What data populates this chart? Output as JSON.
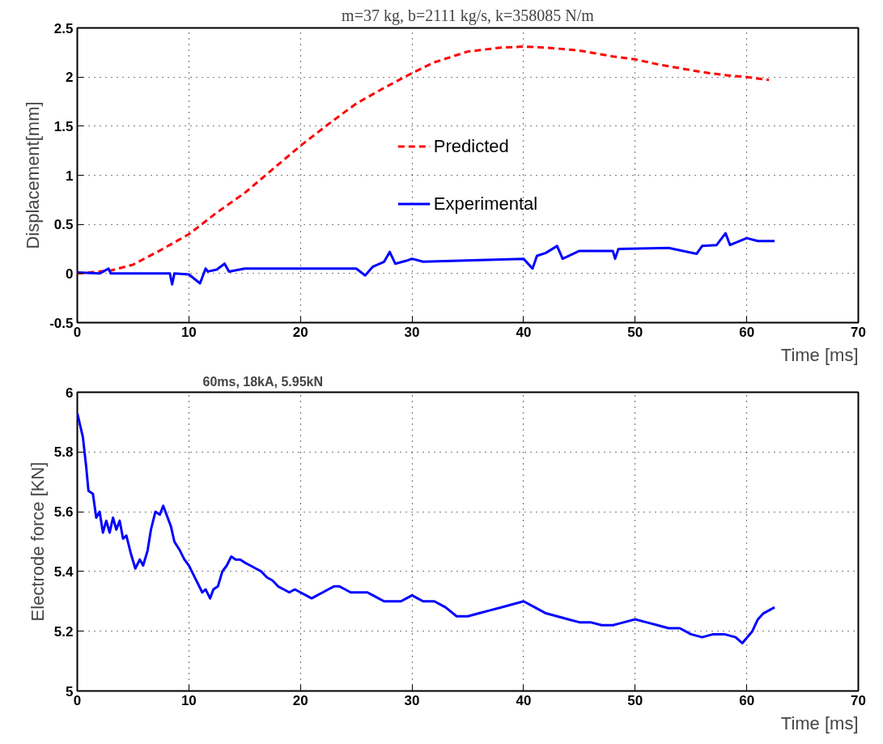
{
  "chart_data": [
    {
      "type": "line",
      "title": "m=37 kg, b=2111 kg/s, k=358085 N/m",
      "xlabel": "Time [ms]",
      "ylabel": "Displacement[mm]",
      "xlim": [
        0,
        70
      ],
      "xticks": [
        0,
        10,
        20,
        30,
        40,
        50,
        60,
        70
      ],
      "ylim": [
        -0.5,
        2.5
      ],
      "yticks": [
        -0.5,
        0,
        0.5,
        1,
        1.5,
        2,
        2.5
      ],
      "grid": true,
      "legend": "center",
      "series": [
        {
          "name": "Predicted",
          "color": "#ff0000",
          "line_style": "dashed",
          "x": [
            0,
            3,
            5,
            7.5,
            10,
            12.5,
            15,
            17.5,
            20,
            22.5,
            25,
            27.5,
            30,
            32,
            35,
            38,
            40,
            42,
            45,
            48,
            50,
            52,
            54,
            56,
            58,
            60,
            62
          ],
          "values": [
            0,
            0.03,
            0.09,
            0.24,
            0.4,
            0.62,
            0.82,
            1.06,
            1.3,
            1.52,
            1.73,
            1.89,
            2.04,
            2.15,
            2.26,
            2.3,
            2.31,
            2.3,
            2.27,
            2.21,
            2.18,
            2.13,
            2.09,
            2.05,
            2.02,
            2.0,
            1.97
          ]
        },
        {
          "name": "Experimental",
          "color": "#0000ff",
          "line_style": "solid",
          "x": [
            0,
            2,
            2.8,
            3,
            8.3,
            8.5,
            8.7,
            10,
            11,
            11.5,
            11.7,
            12.5,
            13.2,
            13.6,
            15,
            25,
            25.8,
            26.5,
            27.5,
            28,
            28.5,
            29.5,
            30,
            31,
            40,
            40.8,
            41.2,
            42,
            43,
            43.5,
            45,
            48,
            48.2,
            48.5,
            53,
            55.5,
            56,
            57.3,
            58.1,
            58.5,
            60,
            61,
            62.5
          ],
          "values": [
            0.01,
            0.0,
            0.05,
            0.0,
            0.0,
            -0.11,
            0.0,
            -0.01,
            -0.1,
            0.05,
            0.02,
            0.04,
            0.1,
            0.02,
            0.05,
            0.05,
            -0.02,
            0.07,
            0.12,
            0.22,
            0.1,
            0.13,
            0.15,
            0.12,
            0.15,
            0.05,
            0.18,
            0.21,
            0.28,
            0.15,
            0.23,
            0.23,
            0.15,
            0.25,
            0.26,
            0.2,
            0.28,
            0.29,
            0.41,
            0.29,
            0.36,
            0.33,
            0.33
          ]
        }
      ]
    },
    {
      "type": "line",
      "title": "60ms,  18kA,  5.95kN",
      "xlabel": "Time [ms]",
      "ylabel": "Electrode force [KN]",
      "xlim": [
        0,
        70
      ],
      "xticks": [
        0,
        10,
        20,
        30,
        40,
        50,
        60,
        70
      ],
      "ylim": [
        5,
        6
      ],
      "yticks": [
        5,
        5.2,
        5.4,
        5.6,
        5.8,
        6
      ],
      "grid": true,
      "legend": false,
      "series": [
        {
          "color": "#0000ff",
          "line_style": "solid",
          "x": [
            0,
            0.5,
            0.8,
            1.0,
            1.4,
            1.7,
            2.0,
            2.3,
            2.6,
            2.9,
            3.2,
            3.5,
            3.8,
            4.1,
            4.4,
            4.8,
            5.2,
            5.6,
            5.9,
            6.3,
            6.6,
            7.0,
            7.4,
            7.7,
            8.0,
            8.4,
            8.7,
            9.2,
            9.6,
            10.0,
            10.4,
            10.8,
            11.2,
            11.5,
            11.9,
            12.2,
            12.6,
            13.0,
            13.4,
            13.8,
            14.2,
            14.6,
            15,
            15.5,
            16,
            16.5,
            17,
            17.5,
            18,
            18.5,
            19,
            19.5,
            20,
            20.5,
            21,
            21.5,
            22,
            22.5,
            23,
            23.5,
            24,
            24.5,
            25,
            26,
            26.5,
            27,
            27.5,
            28,
            29,
            29.5,
            30,
            30.5,
            31,
            32,
            33,
            34,
            35,
            36,
            37,
            38,
            39,
            40,
            41,
            42,
            43,
            44,
            45,
            46,
            47,
            48,
            49,
            50,
            51,
            52,
            53,
            54,
            55,
            56,
            57,
            58,
            59,
            59.6,
            60.5,
            61,
            61.5,
            62,
            62.5
          ],
          "values": [
            5.93,
            5.85,
            5.75,
            5.67,
            5.66,
            5.58,
            5.6,
            5.53,
            5.57,
            5.53,
            5.58,
            5.54,
            5.57,
            5.51,
            5.52,
            5.46,
            5.41,
            5.44,
            5.42,
            5.47,
            5.54,
            5.6,
            5.59,
            5.62,
            5.59,
            5.55,
            5.5,
            5.47,
            5.44,
            5.42,
            5.39,
            5.36,
            5.33,
            5.34,
            5.31,
            5.34,
            5.35,
            5.4,
            5.42,
            5.45,
            5.44,
            5.44,
            5.43,
            5.42,
            5.41,
            5.4,
            5.38,
            5.37,
            5.35,
            5.34,
            5.33,
            5.34,
            5.33,
            5.32,
            5.31,
            5.32,
            5.33,
            5.34,
            5.35,
            5.35,
            5.34,
            5.33,
            5.33,
            5.33,
            5.32,
            5.31,
            5.3,
            5.3,
            5.3,
            5.31,
            5.32,
            5.31,
            5.3,
            5.3,
            5.28,
            5.25,
            5.25,
            5.26,
            5.27,
            5.28,
            5.29,
            5.3,
            5.28,
            5.26,
            5.25,
            5.24,
            5.23,
            5.23,
            5.22,
            5.22,
            5.23,
            5.24,
            5.23,
            5.22,
            5.21,
            5.21,
            5.19,
            5.18,
            5.19,
            5.19,
            5.18,
            5.16,
            5.2,
            5.24,
            5.26,
            5.27,
            5.28
          ]
        }
      ]
    }
  ]
}
